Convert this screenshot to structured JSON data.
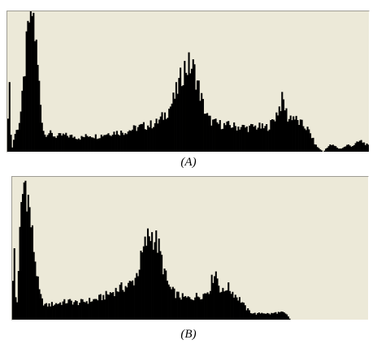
{
  "figure": {
    "caption_a": "(A)",
    "caption_b": "(B)"
  },
  "colors": {
    "panel_background": "#ece9d8",
    "bars": "#000000"
  },
  "chart_data": [
    {
      "type": "bar",
      "title": "",
      "caption": "(A)",
      "xlabel": "",
      "ylabel": "",
      "xlim": [
        0,
        256
      ],
      "ylim": [
        0,
        100
      ],
      "axes": "none",
      "grid": false,
      "legend": "none",
      "profile": [
        [
          0,
          0
        ],
        [
          1,
          58
        ],
        [
          3,
          0
        ],
        [
          5,
          12
        ],
        [
          7,
          16
        ],
        [
          9,
          24
        ],
        [
          11,
          42
        ],
        [
          13,
          68
        ],
        [
          15,
          90
        ],
        [
          16,
          100
        ],
        [
          18,
          100
        ],
        [
          20,
          80
        ],
        [
          22,
          55
        ],
        [
          24,
          28
        ],
        [
          26,
          12
        ],
        [
          29,
          14
        ],
        [
          34,
          11
        ],
        [
          40,
          12
        ],
        [
          46,
          11
        ],
        [
          52,
          10
        ],
        [
          58,
          12
        ],
        [
          64,
          11
        ],
        [
          70,
          13
        ],
        [
          76,
          14
        ],
        [
          82,
          14
        ],
        [
          88,
          16
        ],
        [
          94,
          18
        ],
        [
          100,
          19
        ],
        [
          106,
          21
        ],
        [
          110,
          25
        ],
        [
          114,
          30
        ],
        [
          118,
          38
        ],
        [
          122,
          50
        ],
        [
          125,
          60
        ],
        [
          128,
          62
        ],
        [
          131,
          61
        ],
        [
          133,
          56
        ],
        [
          136,
          44
        ],
        [
          139,
          32
        ],
        [
          142,
          24
        ],
        [
          146,
          21
        ],
        [
          150,
          20
        ],
        [
          154,
          19
        ],
        [
          158,
          19
        ],
        [
          162,
          18
        ],
        [
          166,
          18
        ],
        [
          170,
          17
        ],
        [
          174,
          18
        ],
        [
          178,
          18
        ],
        [
          182,
          17
        ],
        [
          186,
          19
        ],
        [
          190,
          26
        ],
        [
          193,
          33
        ],
        [
          195,
          38
        ],
        [
          197,
          30
        ],
        [
          199,
          23
        ],
        [
          201,
          26
        ],
        [
          203,
          25
        ],
        [
          205,
          22
        ],
        [
          208,
          20
        ],
        [
          212,
          17
        ],
        [
          215,
          12
        ],
        [
          218,
          5
        ],
        [
          221,
          2
        ],
        [
          224,
          0
        ],
        [
          226,
          3
        ],
        [
          229,
          5
        ],
        [
          232,
          4
        ],
        [
          235,
          2
        ],
        [
          238,
          3
        ],
        [
          241,
          5
        ],
        [
          244,
          4
        ],
        [
          247,
          6
        ],
        [
          250,
          8
        ],
        [
          253,
          6
        ],
        [
          256,
          4
        ]
      ]
    },
    {
      "type": "bar",
      "title": "",
      "caption": "(B)",
      "xlabel": "",
      "ylabel": "",
      "xlim": [
        0,
        256
      ],
      "ylim": [
        0,
        100
      ],
      "axes": "none",
      "grid": false,
      "legend": "none",
      "profile": [
        [
          0,
          0
        ],
        [
          1,
          62
        ],
        [
          3,
          0
        ],
        [
          5,
          50
        ],
        [
          7,
          85
        ],
        [
          9,
          100
        ],
        [
          11,
          90
        ],
        [
          13,
          72
        ],
        [
          15,
          55
        ],
        [
          17,
          38
        ],
        [
          19,
          22
        ],
        [
          21,
          14
        ],
        [
          24,
          10
        ],
        [
          29,
          11
        ],
        [
          35,
          12
        ],
        [
          41,
          13
        ],
        [
          47,
          12
        ],
        [
          53,
          13
        ],
        [
          59,
          14
        ],
        [
          65,
          16
        ],
        [
          71,
          19
        ],
        [
          77,
          22
        ],
        [
          83,
          24
        ],
        [
          87,
          27
        ],
        [
          90,
          33
        ],
        [
          93,
          44
        ],
        [
          96,
          54
        ],
        [
          99,
          61
        ],
        [
          102,
          59
        ],
        [
          105,
          52
        ],
        [
          108,
          40
        ],
        [
          111,
          28
        ],
        [
          114,
          21
        ],
        [
          118,
          18
        ],
        [
          122,
          16
        ],
        [
          126,
          15
        ],
        [
          130,
          16
        ],
        [
          134,
          17
        ],
        [
          138,
          18
        ],
        [
          142,
          22
        ],
        [
          144,
          29
        ],
        [
          146,
          36
        ],
        [
          148,
          27
        ],
        [
          150,
          21
        ],
        [
          152,
          19
        ],
        [
          154,
          24
        ],
        [
          156,
          22
        ],
        [
          159,
          19
        ],
        [
          162,
          16
        ],
        [
          165,
          13
        ],
        [
          168,
          8
        ],
        [
          172,
          5
        ],
        [
          176,
          4
        ],
        [
          180,
          5
        ],
        [
          185,
          4
        ],
        [
          190,
          5
        ],
        [
          195,
          5
        ],
        [
          198,
          3
        ],
        [
          200,
          0
        ],
        [
          256,
          0
        ]
      ]
    }
  ]
}
